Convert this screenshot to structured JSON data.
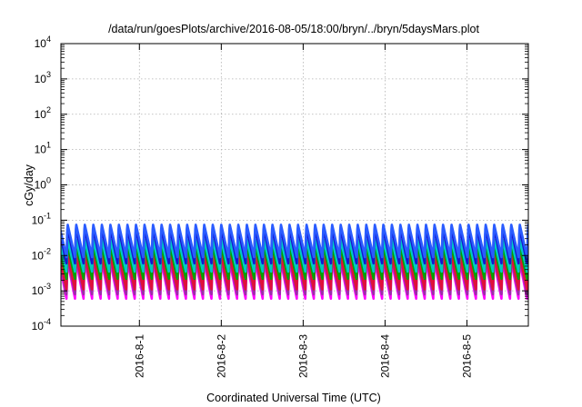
{
  "chart_data": {
    "type": "line",
    "title": "/data/run/goesPlots/archive/2016-08-05/18:00/bryn/../bryn/5daysMars.plot",
    "xlabel": "Coordinated Universal Time (UTC)",
    "ylabel": "cGy/day",
    "y_scale": "log",
    "ylim": [
      0.0001,
      10000
    ],
    "y_ticks": [
      {
        "value": 0.0001,
        "base": "10",
        "exp": "-4"
      },
      {
        "value": 0.001,
        "base": "10",
        "exp": "-3"
      },
      {
        "value": 0.01,
        "base": "10",
        "exp": "-2"
      },
      {
        "value": 0.1,
        "base": "10",
        "exp": "-1"
      },
      {
        "value": 1,
        "base": "10",
        "exp": "0"
      },
      {
        "value": 10,
        "base": "10",
        "exp": "1"
      },
      {
        "value": 100,
        "base": "10",
        "exp": "2"
      },
      {
        "value": 1000,
        "base": "10",
        "exp": "3"
      },
      {
        "value": 10000,
        "base": "10",
        "exp": "4"
      }
    ],
    "x_range_days": [
      "2016-07-31 01:00",
      "2016-08-05 18:00"
    ],
    "x_ticks": [
      {
        "value": "2016-08-01",
        "label": "2016-8-1"
      },
      {
        "value": "2016-08-02",
        "label": "2016-8-2"
      },
      {
        "value": "2016-08-03",
        "label": "2016-8-3"
      },
      {
        "value": "2016-08-04",
        "label": "2016-8-4"
      },
      {
        "value": "2016-08-05",
        "label": "2016-8-5"
      }
    ],
    "grid": true,
    "oscillation": {
      "period_hours": 2.5,
      "shape": "sawtooth",
      "note_series_peak_and_trough_cGy_per_day": true
    },
    "series": [
      {
        "color": "#ff00ff",
        "peak": 0.007,
        "trough": 0.0006
      },
      {
        "color": "#9b2fa8",
        "peak": 0.009,
        "trough": 0.0008
      },
      {
        "color": "#e0103a",
        "peak": 0.011,
        "trough": 0.0011
      },
      {
        "color": "#00a300",
        "peak": 0.02,
        "trough": 0.0022
      },
      {
        "color": "#00c8c8",
        "peak": 0.03,
        "trough": 0.0035
      },
      {
        "color": "#1515d0",
        "peak": 0.06,
        "trough": 0.006
      },
      {
        "color": "#2a5cff",
        "peak": 0.08,
        "trough": 0.009
      }
    ]
  }
}
